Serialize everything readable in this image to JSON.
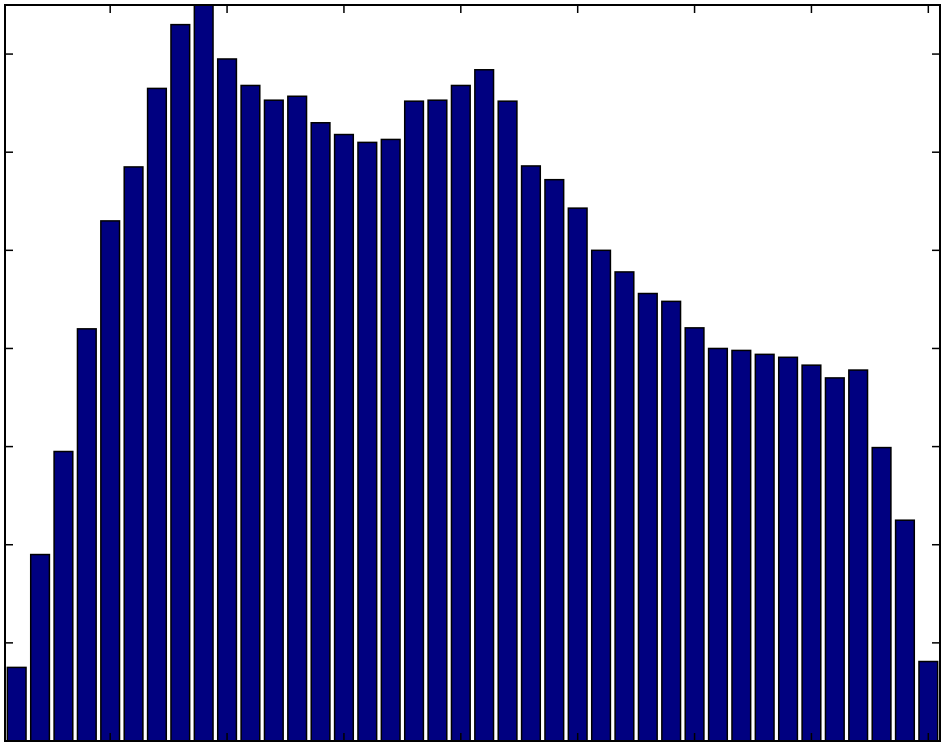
{
  "chart_data": {
    "type": "bar",
    "title": "",
    "xlabel": "",
    "ylabel": "",
    "grid": false,
    "legend": "none",
    "bar_color": "#000080",
    "edge_color": "#000000",
    "xlim": [
      0.5,
      40.5
    ],
    "ylim": [
      0,
      7.5
    ],
    "x_ticks": [
      5,
      10,
      15,
      20,
      25,
      30,
      35,
      40
    ],
    "y_ticks": [
      1,
      2,
      3,
      4,
      5,
      6,
      7
    ],
    "x": [
      1,
      2,
      3,
      4,
      5,
      6,
      7,
      8,
      9,
      10,
      11,
      12,
      13,
      14,
      15,
      16,
      17,
      18,
      19,
      20,
      21,
      22,
      23,
      24,
      25,
      26,
      27,
      28,
      29,
      30,
      31,
      32,
      33,
      34,
      35,
      36,
      37,
      38,
      39,
      40
    ],
    "values": [
      0.75,
      1.9,
      2.95,
      4.2,
      5.3,
      5.85,
      6.65,
      7.3,
      7.55,
      6.95,
      6.68,
      6.53,
      6.57,
      6.3,
      6.18,
      6.1,
      6.13,
      6.52,
      6.53,
      6.68,
      6.84,
      6.52,
      5.86,
      5.72,
      5.43,
      5.0,
      4.78,
      4.56,
      4.48,
      4.21,
      4.0,
      3.98,
      3.94,
      3.91,
      3.83,
      3.7,
      3.78,
      2.99,
      2.25,
      0.81
    ]
  }
}
